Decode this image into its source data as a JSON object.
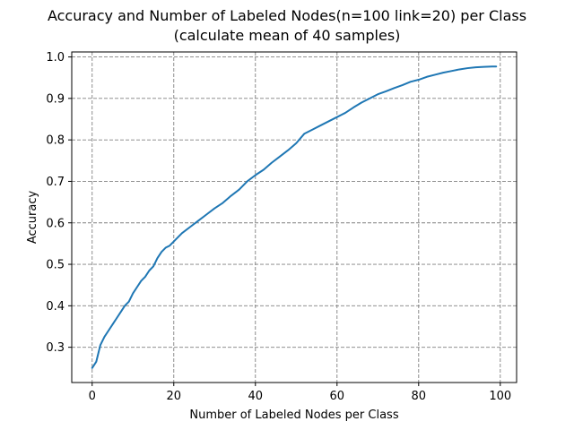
{
  "chart_data": {
    "type": "line",
    "title": "Accuracy and Number of Labeled Nodes(n=100 link=20) per Class",
    "subtitle": "(calculate mean of 40 samples)",
    "xlabel": "Number of Labeled Nodes per Class",
    "ylabel": "Accuracy",
    "xlim": [
      -5,
      104
    ],
    "ylim": [
      0.215,
      1.012
    ],
    "xticks": [
      0,
      20,
      40,
      60,
      80,
      100
    ],
    "yticks": [
      0.3,
      0.4,
      0.5,
      0.6,
      0.7,
      0.8,
      0.9,
      1.0
    ],
    "xtick_labels": [
      "0",
      "20",
      "40",
      "60",
      "80",
      "100"
    ],
    "ytick_labels": [
      "0.3",
      "0.4",
      "0.5",
      "0.6",
      "0.7",
      "0.8",
      "0.9",
      "1.0"
    ],
    "grid": true,
    "line_color": "#1f77b4",
    "series": [
      {
        "x": [
          0,
          1,
          2,
          3,
          4,
          5,
          6,
          7,
          8,
          9,
          10,
          11,
          12,
          13,
          14,
          15,
          16,
          17,
          18,
          19,
          20,
          22,
          24,
          26,
          28,
          30,
          32,
          34,
          36,
          38,
          40,
          42,
          44,
          46,
          48,
          50,
          52,
          54,
          56,
          58,
          60,
          62,
          64,
          66,
          68,
          70,
          72,
          74,
          76,
          78,
          80,
          82,
          84,
          86,
          88,
          90,
          92,
          94,
          96,
          98,
          99
        ],
        "y": [
          0.25,
          0.265,
          0.305,
          0.325,
          0.34,
          0.355,
          0.37,
          0.385,
          0.4,
          0.41,
          0.43,
          0.445,
          0.46,
          0.47,
          0.485,
          0.495,
          0.515,
          0.53,
          0.54,
          0.545,
          0.555,
          0.575,
          0.59,
          0.605,
          0.62,
          0.635,
          0.648,
          0.665,
          0.68,
          0.7,
          0.715,
          0.728,
          0.745,
          0.76,
          0.775,
          0.792,
          0.815,
          0.825,
          0.835,
          0.845,
          0.855,
          0.865,
          0.878,
          0.89,
          0.9,
          0.91,
          0.917,
          0.925,
          0.932,
          0.94,
          0.945,
          0.952,
          0.957,
          0.962,
          0.966,
          0.97,
          0.973,
          0.975,
          0.976,
          0.977,
          0.977
        ]
      }
    ]
  }
}
